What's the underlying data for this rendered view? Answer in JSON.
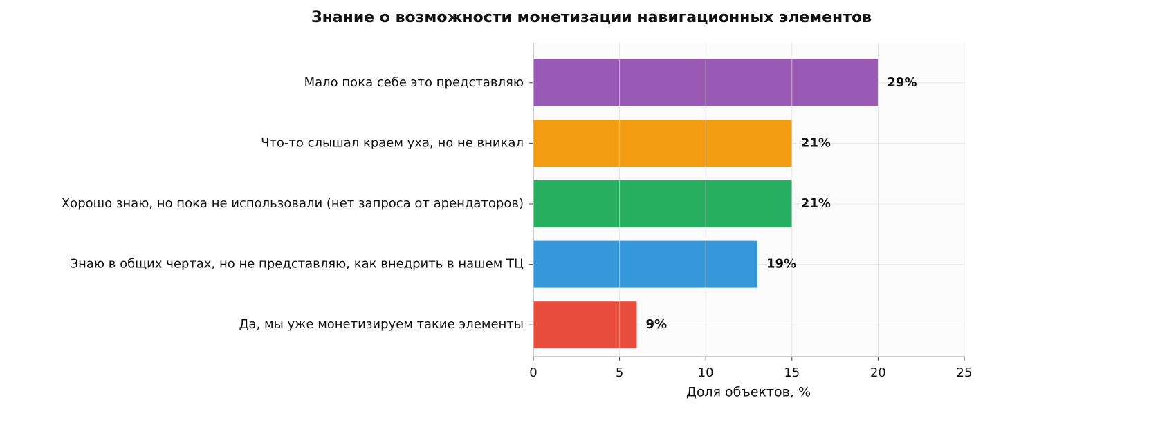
{
  "chart_data": {
    "type": "barh",
    "title": "Знание о возможности монетизации навигационных элементов",
    "xlabel": "Доля объектов, %",
    "categories": [
      "Мало пока себе это представляю",
      "Что-то слышал краем уха, но не вникал",
      "Хорошо знаю, но пока не использовали (нет запроса от арендаторов)",
      "Знаю в общих чертах, но не представляю, как внедрить в нашем ТЦ",
      "Да, мы уже монетизируем такие элементы"
    ],
    "values": [
      20,
      15,
      15,
      13,
      6
    ],
    "bar_labels": [
      "29%",
      "21%",
      "21%",
      "19%",
      "9%"
    ],
    "colors": [
      "#9b59b6",
      "#f39c12",
      "#27ae60",
      "#3498db",
      "#e74c3c"
    ],
    "xlim": [
      0,
      25
    ],
    "xticks": [
      0,
      5,
      10,
      15,
      20,
      25
    ],
    "grid": true
  }
}
